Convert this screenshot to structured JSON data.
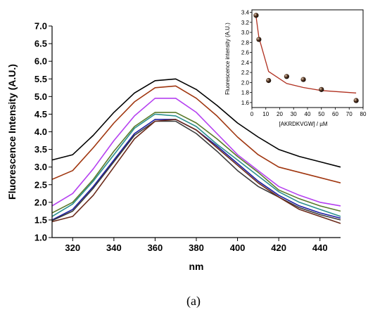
{
  "figure_caption": "(a)",
  "chart_data": [
    {
      "type": "line",
      "xlabel": "nm",
      "ylabel": "Fluorescence Intensity (A.U.)",
      "xlim": [
        310,
        450
      ],
      "ylim": [
        1.0,
        7.0
      ],
      "xticks": [
        320,
        340,
        360,
        380,
        400,
        420,
        440
      ],
      "yticks": [
        1.0,
        1.5,
        2.0,
        2.5,
        3.0,
        3.5,
        4.0,
        4.5,
        5.0,
        5.5,
        6.0,
        6.5,
        7.0
      ],
      "x": [
        310,
        320,
        330,
        340,
        350,
        360,
        370,
        380,
        390,
        400,
        410,
        420,
        430,
        440,
        450
      ],
      "series": [
        {
          "color": "#000000",
          "values": [
            3.2,
            3.35,
            3.9,
            4.55,
            5.1,
            5.45,
            5.5,
            5.2,
            4.75,
            4.25,
            3.85,
            3.5,
            3.3,
            3.15,
            3.0
          ]
        },
        {
          "color": "#a0360f",
          "values": [
            2.65,
            2.9,
            3.55,
            4.25,
            4.85,
            5.25,
            5.3,
            4.95,
            4.45,
            3.85,
            3.35,
            3.0,
            2.85,
            2.7,
            2.55
          ]
        },
        {
          "color": "#b540f0",
          "values": [
            1.9,
            2.25,
            2.95,
            3.75,
            4.45,
            4.95,
            4.95,
            4.55,
            3.95,
            3.35,
            2.9,
            2.45,
            2.2,
            2.0,
            1.9
          ]
        },
        {
          "color": "#5a7a2a",
          "values": [
            1.7,
            2.0,
            2.65,
            3.45,
            4.15,
            4.55,
            4.55,
            4.25,
            3.8,
            3.3,
            2.85,
            2.35,
            2.1,
            1.9,
            1.75
          ]
        },
        {
          "color": "#2a8f8f",
          "values": [
            1.6,
            1.95,
            2.6,
            3.35,
            4.1,
            4.5,
            4.45,
            4.15,
            3.65,
            3.2,
            2.75,
            2.3,
            2.0,
            1.8,
            1.6
          ]
        },
        {
          "color": "#1a1aa0",
          "values": [
            1.5,
            1.8,
            2.45,
            3.2,
            3.95,
            4.35,
            4.35,
            4.05,
            3.6,
            3.1,
            2.6,
            2.2,
            1.9,
            1.7,
            1.55
          ]
        },
        {
          "color": "#3a3a3a",
          "values": [
            1.48,
            1.75,
            2.4,
            3.15,
            3.9,
            4.3,
            4.3,
            3.95,
            3.45,
            2.9,
            2.45,
            2.15,
            1.85,
            1.65,
            1.5
          ]
        },
        {
          "color": "#6b2a1a",
          "values": [
            1.45,
            1.6,
            2.2,
            3.0,
            3.8,
            4.3,
            4.35,
            4.05,
            3.55,
            3.05,
            2.55,
            2.15,
            1.8,
            1.6,
            1.4
          ]
        }
      ]
    },
    {
      "type": "scatter",
      "xlabel": "[AKRDKVGW] / µM",
      "ylabel": "Fluorescence intensity (A.U.)",
      "xlim": [
        0,
        80
      ],
      "ylim": [
        1.5,
        3.45
      ],
      "xticks": [
        0,
        10,
        20,
        30,
        40,
        50,
        60,
        70,
        80
      ],
      "yticks": [
        1.6,
        1.8,
        2.0,
        2.2,
        2.4,
        2.6,
        2.8,
        3.0,
        3.2,
        3.4
      ],
      "points": {
        "x": [
          3,
          5,
          12,
          25,
          37,
          50,
          75
        ],
        "y": [
          3.34,
          2.86,
          2.04,
          2.12,
          2.06,
          1.86,
          1.64
        ]
      },
      "fit": {
        "color": "#b03020",
        "x": [
          3,
          5,
          12,
          25,
          37,
          50,
          75
        ],
        "y": [
          3.32,
          2.9,
          2.22,
          1.98,
          1.9,
          1.84,
          1.79
        ]
      }
    }
  ]
}
